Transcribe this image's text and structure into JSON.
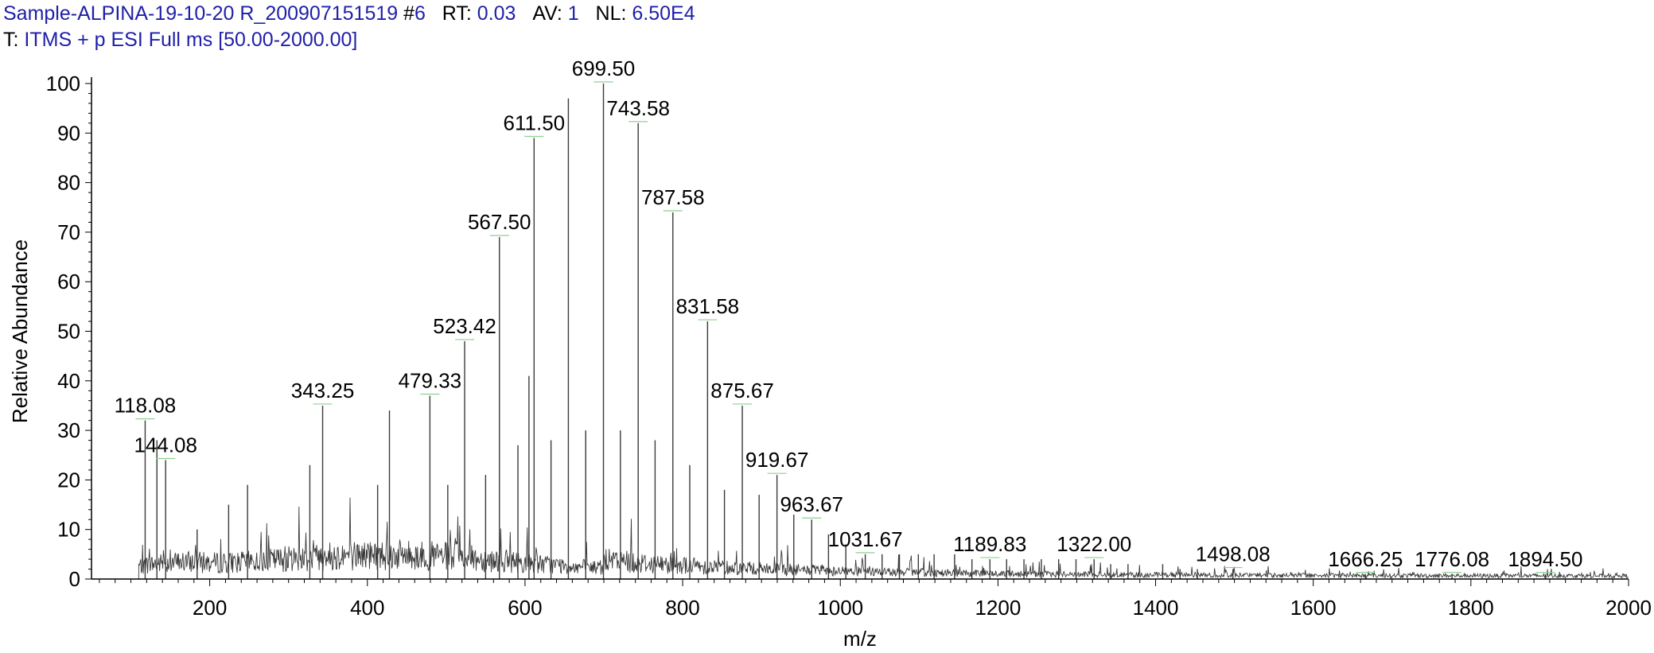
{
  "header": {
    "sample": "Sample-ALPINA-19-10-20 R_200907151519",
    "scan_prefix": "#",
    "scan": "6",
    "rt_label": "RT:",
    "rt": "0.03",
    "av_label": "AV:",
    "av": "1",
    "nl_label": "NL:",
    "nl": "6.50E4",
    "t_label": "T:",
    "filter": "ITMS + p ESI Full ms [50.00-2000.00]"
  },
  "chart_data": {
    "type": "line",
    "xlabel": "m/z",
    "ylabel": "Relative Abundance",
    "xlim": [
      50,
      2000
    ],
    "ylim": [
      0,
      100
    ],
    "x_ticks": [
      200,
      400,
      600,
      800,
      1000,
      1200,
      1400,
      1600,
      1800,
      2000
    ],
    "y_ticks": [
      0,
      10,
      20,
      30,
      40,
      50,
      60,
      70,
      80,
      90,
      100
    ],
    "labeled_peaks": [
      {
        "mz": 118.08,
        "label": "118.08",
        "intensity": 32
      },
      {
        "mz": 144.08,
        "label": "144.08",
        "intensity": 24
      },
      {
        "mz": 343.25,
        "label": "343.25",
        "intensity": 35
      },
      {
        "mz": 479.33,
        "label": "479.33",
        "intensity": 37
      },
      {
        "mz": 523.42,
        "label": "523.42",
        "intensity": 48
      },
      {
        "mz": 567.5,
        "label": "567.50",
        "intensity": 69
      },
      {
        "mz": 611.5,
        "label": "611.50",
        "intensity": 89
      },
      {
        "mz": 699.5,
        "label": "699.50",
        "intensity": 100
      },
      {
        "mz": 743.58,
        "label": "743.58",
        "intensity": 92
      },
      {
        "mz": 787.58,
        "label": "787.58",
        "intensity": 74
      },
      {
        "mz": 831.58,
        "label": "831.58",
        "intensity": 52
      },
      {
        "mz": 875.67,
        "label": "875.67",
        "intensity": 35
      },
      {
        "mz": 919.67,
        "label": "919.67",
        "intensity": 21
      },
      {
        "mz": 963.67,
        "label": "963.67",
        "intensity": 12
      },
      {
        "mz": 1031.67,
        "label": "1031.67",
        "intensity": 5
      },
      {
        "mz": 1189.83,
        "label": "1189.83",
        "intensity": 4
      },
      {
        "mz": 1322.0,
        "label": "1322.00",
        "intensity": 4
      },
      {
        "mz": 1498.08,
        "label": "1498.08",
        "intensity": 2
      },
      {
        "mz": 1666.25,
        "label": "1666.25",
        "intensity": 1
      },
      {
        "mz": 1776.08,
        "label": "1776.08",
        "intensity": 1
      },
      {
        "mz": 1894.5,
        "label": "1894.50",
        "intensity": 1
      }
    ],
    "other_peaks": [
      {
        "mz": 133,
        "intensity": 28
      },
      {
        "mz": 184,
        "intensity": 10
      },
      {
        "mz": 224,
        "intensity": 15
      },
      {
        "mz": 248,
        "intensity": 19
      },
      {
        "mz": 327,
        "intensity": 23
      },
      {
        "mz": 413,
        "intensity": 19
      },
      {
        "mz": 428,
        "intensity": 34
      },
      {
        "mz": 502,
        "intensity": 19
      },
      {
        "mz": 550,
        "intensity": 21
      },
      {
        "mz": 591,
        "intensity": 27
      },
      {
        "mz": 605,
        "intensity": 41
      },
      {
        "mz": 633,
        "intensity": 28
      },
      {
        "mz": 655,
        "intensity": 97
      },
      {
        "mz": 677,
        "intensity": 30
      },
      {
        "mz": 721,
        "intensity": 30
      },
      {
        "mz": 765,
        "intensity": 28
      },
      {
        "mz": 809,
        "intensity": 23
      },
      {
        "mz": 853,
        "intensity": 18
      },
      {
        "mz": 897,
        "intensity": 17
      },
      {
        "mz": 941,
        "intensity": 13
      },
      {
        "mz": 985,
        "intensity": 9
      },
      {
        "mz": 1007,
        "intensity": 7
      },
      {
        "mz": 1053,
        "intensity": 5
      },
      {
        "mz": 1075,
        "intensity": 5
      },
      {
        "mz": 1099,
        "intensity": 5
      },
      {
        "mz": 1119,
        "intensity": 5
      },
      {
        "mz": 1145,
        "intensity": 5
      },
      {
        "mz": 1167,
        "intensity": 4
      },
      {
        "mz": 1211,
        "intensity": 4
      },
      {
        "mz": 1233,
        "intensity": 4
      },
      {
        "mz": 1255,
        "intensity": 4
      },
      {
        "mz": 1277,
        "intensity": 4
      },
      {
        "mz": 1299,
        "intensity": 4
      },
      {
        "mz": 1343,
        "intensity": 3
      },
      {
        "mz": 1365,
        "intensity": 3
      },
      {
        "mz": 1409,
        "intensity": 3
      },
      {
        "mz": 1431,
        "intensity": 2
      },
      {
        "mz": 1453,
        "intensity": 2
      }
    ],
    "baseline": {
      "start_mz": 110,
      "end_mz": 2000
    },
    "colors": {
      "trace": "#3a3a3a",
      "label_connector": "#8fcf8f",
      "header_value": "#1f1fa8"
    }
  }
}
